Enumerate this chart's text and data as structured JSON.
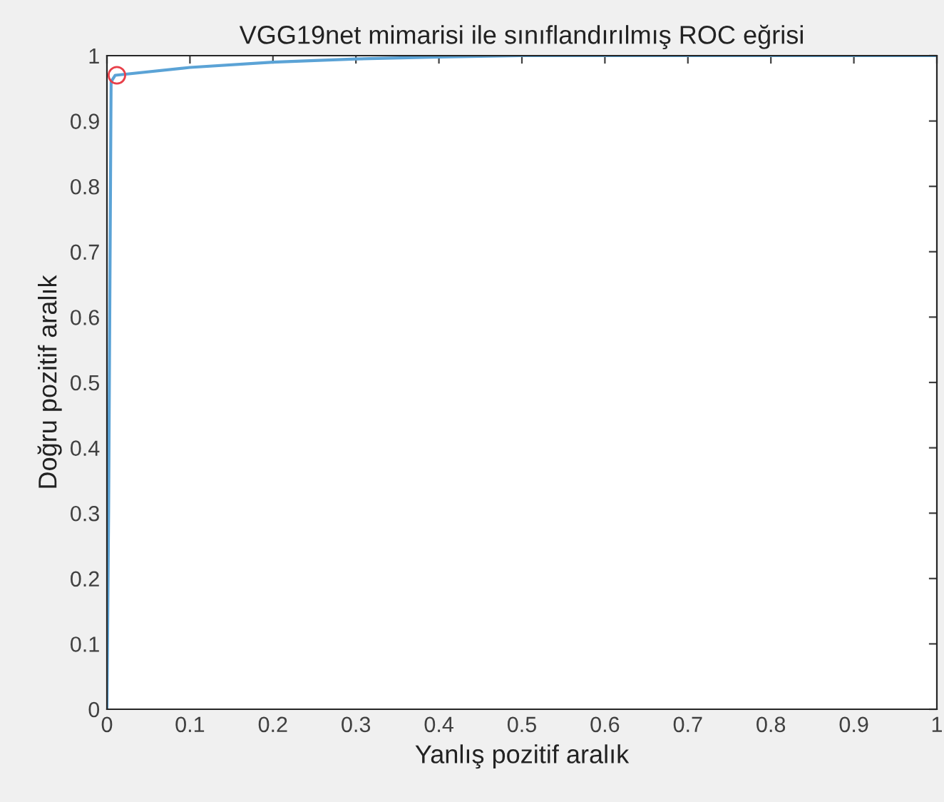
{
  "chart_data": {
    "type": "line",
    "title": "VGG19net mimarisi ile sınıflandırılmış ROC eğrisi",
    "xlabel": "Yanlış pozitif aralık",
    "ylabel": "Doğru pozitif aralık",
    "series": [
      {
        "color": "#5ba3d6",
        "x": [
          0,
          0.002,
          0.005,
          0.01,
          0.1,
          0.2,
          0.3,
          0.4,
          0.5,
          1
        ],
        "values": [
          0,
          0.3,
          0.96,
          0.97,
          0.982,
          0.99,
          0.995,
          0.998,
          1,
          1
        ],
        "marker": "none"
      },
      {
        "type": "scatter",
        "color": "#e8404a",
        "x": [
          0.012
        ],
        "values": [
          0.97
        ],
        "marker": "circle"
      }
    ],
    "xlim": [
      0,
      1
    ],
    "ylim": [
      0,
      1
    ],
    "xticks": [
      0,
      0.1,
      0.2,
      0.3,
      0.4,
      0.5,
      0.6,
      0.7,
      0.8,
      0.9,
      1
    ],
    "yticks": [
      0,
      0.1,
      0.2,
      0.3,
      0.4,
      0.5,
      0.6,
      0.7,
      0.8,
      0.9,
      1
    ],
    "grid": false,
    "legend": false
  }
}
